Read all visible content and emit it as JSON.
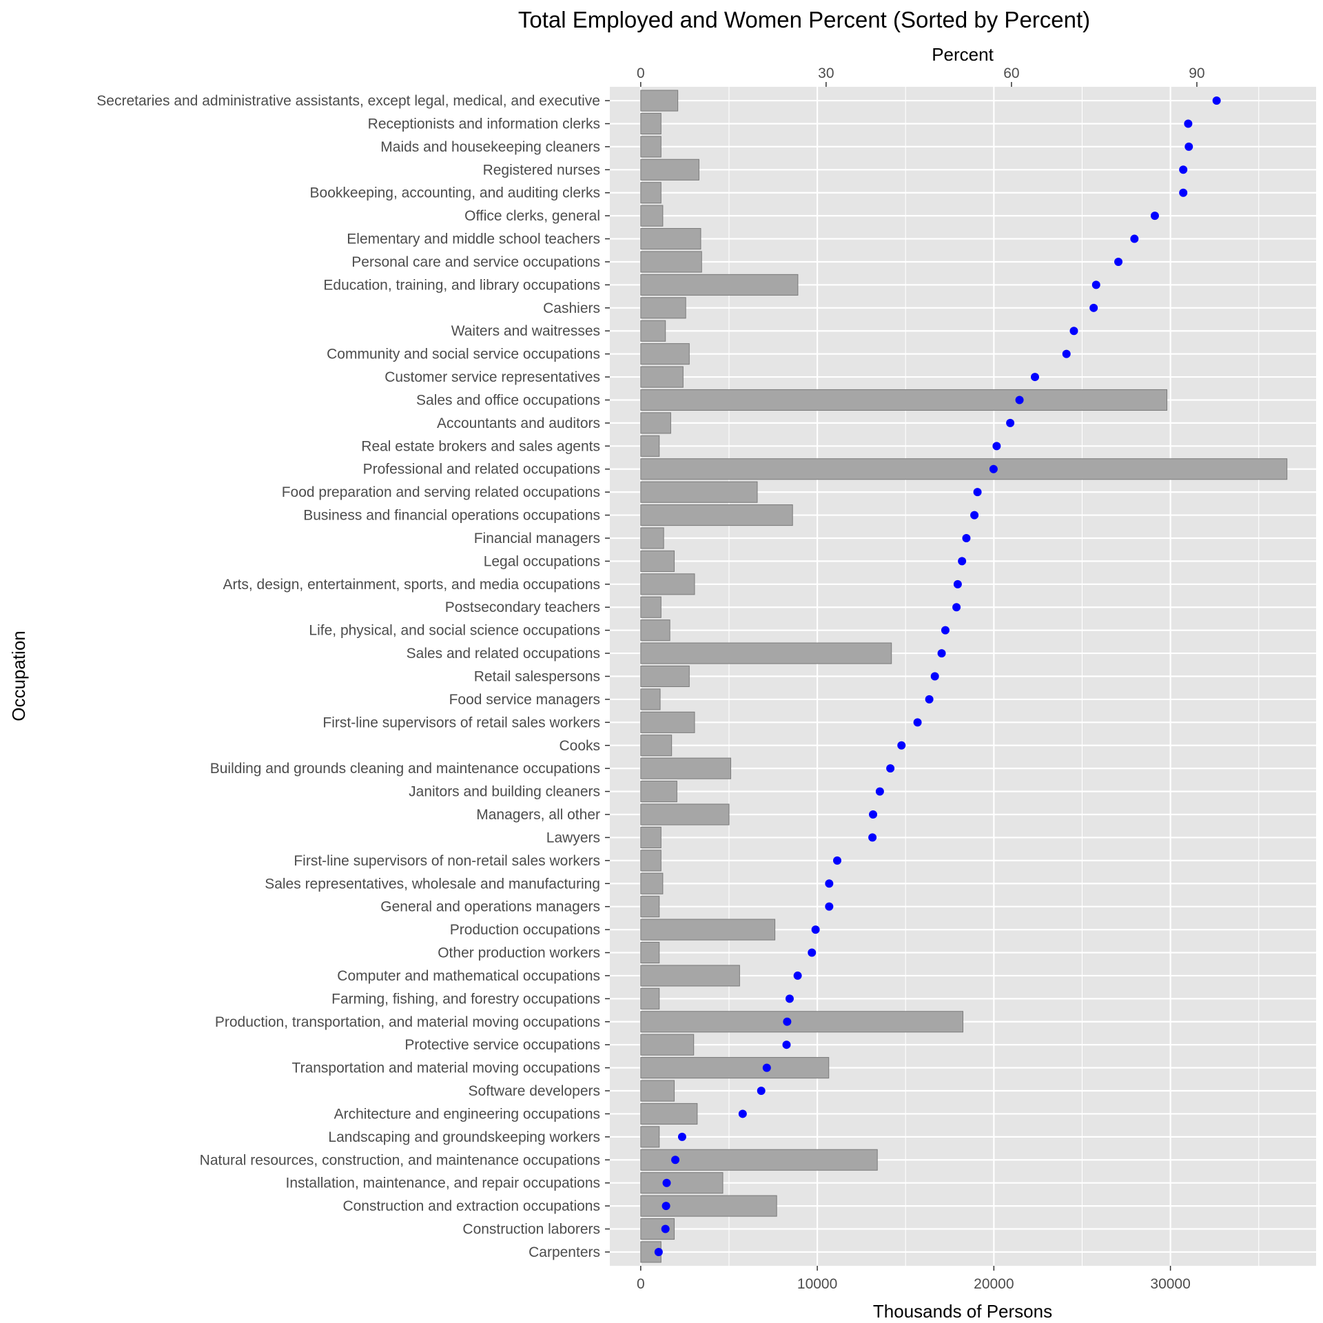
{
  "chart_data": {
    "type": "bar",
    "title": "Total Employed and Women Percent (Sorted by Percent)",
    "ylabel": "Occupation",
    "xlabel_bottom": "Thousands of Persons",
    "xlabel_top": "Percent",
    "x_bottom_ticks": [
      0,
      10000,
      20000,
      30000
    ],
    "x_top_ticks": [
      0,
      30,
      60,
      90
    ],
    "x_bottom_range": [
      -1750,
      38250
    ],
    "x_top_range": [
      -5.0,
      109.3
    ],
    "grid": true,
    "colors": {
      "panel": "#e5e5e5",
      "grid": "#ffffff",
      "bar_fill": "#a6a6a6",
      "bar_edge": "#7a7a7a",
      "point": "#0000ff"
    },
    "categories": [
      "Secretaries and administrative assistants, except legal, medical, and executive",
      "Receptionists and information clerks",
      "Maids and housekeeping cleaners",
      "Registered nurses",
      "Bookkeeping, accounting, and auditing clerks",
      "Office clerks, general",
      "Elementary and middle school teachers",
      "Personal care and service occupations",
      "Education, training, and library occupations",
      "Cashiers",
      "Waiters and waitresses",
      "Community and social service occupations",
      "Customer service representatives",
      "Sales and office occupations",
      "Accountants and auditors",
      "Real estate brokers and sales agents",
      "Professional and related occupations",
      "Food preparation and serving related occupations",
      "Business and financial operations occupations",
      "Financial managers",
      "Legal occupations",
      "Arts, design, entertainment, sports, and media occupations",
      "Postsecondary teachers",
      "Life, physical, and social science occupations",
      "Sales and related occupations",
      "Retail salespersons",
      "Food service managers",
      "First-line supervisors of retail sales workers",
      "Cooks",
      "Building and grounds cleaning and maintenance occupations",
      "Janitors and building cleaners",
      "Managers, all other",
      "Lawyers",
      "First-line supervisors of non-retail sales workers",
      "Sales representatives, wholesale and manufacturing",
      "General and operations managers",
      "Production occupations",
      "Other production workers",
      "Computer and mathematical occupations",
      "Farming, fishing, and forestry occupations",
      "Production, transportation, and material moving occupations",
      "Protective service occupations",
      "Transportation and material moving occupations",
      "Software developers",
      "Architecture and engineering occupations",
      "Landscaping and groundskeeping workers",
      "Natural resources, construction, and maintenance occupations",
      "Installation, maintenance, and repair occupations",
      "Construction and extraction occupations",
      "Construction laborers",
      "Carpenters"
    ],
    "series": [
      {
        "name": "Total employed",
        "axis": "bottom",
        "values": [
          2100,
          1150,
          1150,
          3300,
          1150,
          1250,
          3400,
          3450,
          8900,
          2550,
          1400,
          2750,
          2400,
          29800,
          1700,
          1050,
          36600,
          6600,
          8600,
          1300,
          1900,
          3050,
          1150,
          1650,
          14200,
          2750,
          1100,
          3050,
          1750,
          5100,
          2050,
          5000,
          1150,
          1150,
          1250,
          1050,
          7600,
          1050,
          5600,
          1050,
          18250,
          3000,
          10650,
          1900,
          3200,
          1050,
          13400,
          4650,
          7700,
          1900,
          1150
        ]
      },
      {
        "name": "Women percent",
        "axis": "top",
        "values": [
          93.2,
          88.6,
          88.7,
          87.8,
          87.8,
          83.2,
          79.9,
          77.3,
          73.7,
          73.3,
          70.1,
          68.9,
          63.8,
          61.3,
          59.8,
          57.6,
          57.1,
          54.5,
          54.0,
          52.7,
          52.0,
          51.3,
          51.1,
          49.3,
          48.7,
          47.6,
          46.7,
          44.8,
          42.2,
          40.4,
          38.7,
          37.6,
          37.5,
          31.8,
          30.5,
          30.5,
          28.3,
          27.7,
          25.4,
          24.1,
          23.7,
          23.6,
          20.4,
          19.5,
          16.5,
          6.7,
          5.6,
          4.2,
          4.1,
          4.0,
          2.9
        ]
      }
    ]
  }
}
